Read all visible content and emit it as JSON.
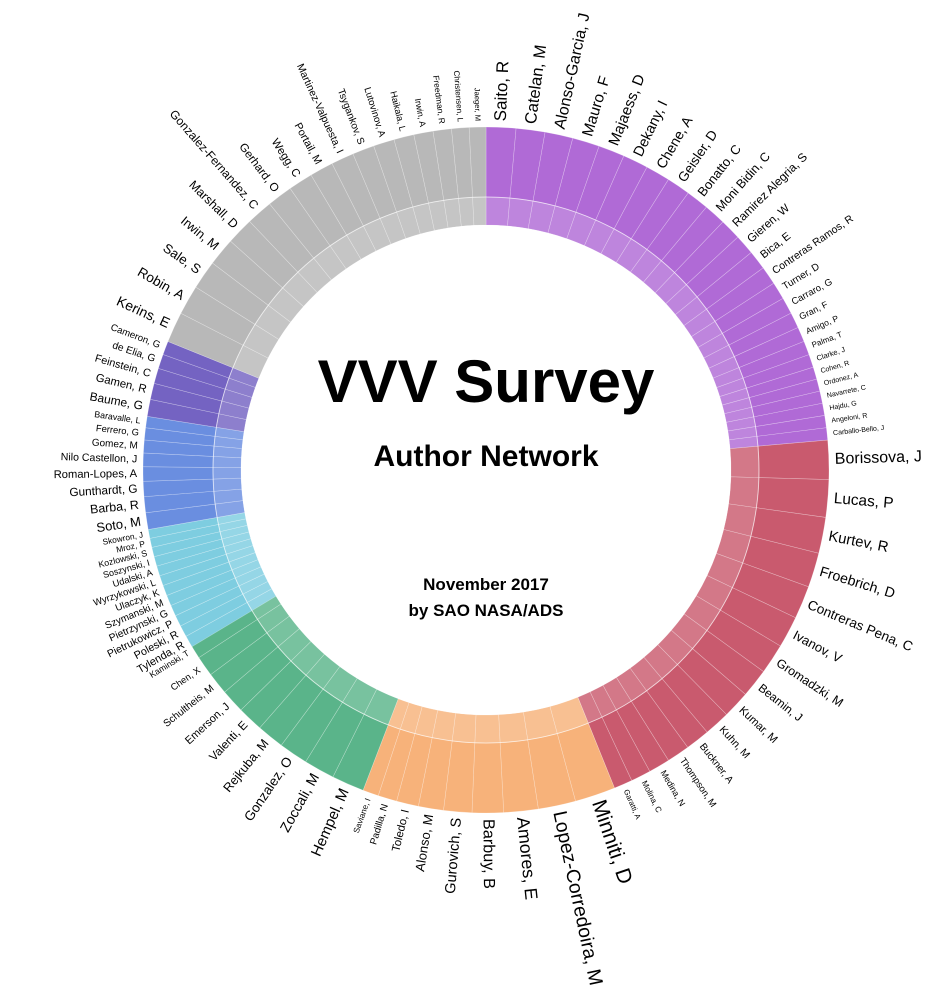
{
  "title": "VVV Survey",
  "subtitle": "Author Network",
  "date": "November 2017",
  "credit": "by SAO NASA/ADS",
  "groups": [
    {
      "color": "#b06ad6",
      "authors": [
        "Saito, R",
        "Catelan, M",
        "Alonso-Garcia, J",
        "Mauro, F",
        "Majaess, D",
        "Dekany, I",
        "Chene, A",
        "Geisler, D",
        "Bonatto, C",
        "Moni Bidin, C",
        "Ramirez Alegria, S",
        "Gieren, W",
        "Bica, E",
        "Contreras Ramos, R",
        "Turner, D",
        "Carraro, G",
        "Gran, F",
        "Amigo, P",
        "Palma, T",
        "Clarke, J",
        "Cohen, R",
        "Ordonez, A",
        "Navarrete, C",
        "Hajdu, G",
        "Angeloni, R",
        "Carballo-Bello, J"
      ]
    },
    {
      "color": "#c95a6e",
      "authors": [
        "Borissova, J",
        "Lucas, P",
        "Kurtev, R",
        "Froebrich, D",
        "Contreras Pena, C",
        "Ivanov, V",
        "Gromadzki, M",
        "Beamin, J",
        "Kumar, M",
        "Kuhn, M",
        "Buckner, A",
        "Thompson, M",
        "Medina, N",
        "Molina, C",
        "Garatti, A"
      ]
    },
    {
      "color": "#f7b27a",
      "authors": [
        "Minniti, D",
        "Lopez-Corredoira, M",
        "Amores, E",
        "Barbuy, B",
        "Gurovich, S",
        "Alonso, M",
        "Toledo, I",
        "Padilla, N",
        "Saviane, I"
      ]
    },
    {
      "color": "#5ab48a",
      "authors": [
        "Hempel, M",
        "Zoccali, M",
        "Gonzalez, O",
        "Rejkuba, M",
        "Valenti, E",
        "Emerson, J",
        "Schultheis, M",
        "Chen, X",
        "Kaminski, T"
      ]
    },
    {
      "color": "#7ecde0",
      "authors": [
        "Tylenda, R",
        "Poleski, R",
        "Pietrukowicz, P",
        "Pietrzynski, G",
        "Szymanski, M",
        "Ulaczyk, K",
        "Wyrzykowski, L",
        "Udalski, A",
        "Soszynski, I",
        "Kozlowski, S",
        "Mroz, P",
        "Skowron, J"
      ]
    },
    {
      "color": "#6a8ee0",
      "authors": [
        "Soto, M",
        "Barba, R",
        "Gunthardt, G",
        "Roman-Lopes, A",
        "Nilo Castellon, J",
        "Gomez, M",
        "Ferrero, G",
        "Baravalle, L"
      ]
    },
    {
      "color": "#7463c2",
      "authors": [
        "Baume, G",
        "Gamen, R",
        "Feinstein, C",
        "de Elia, G",
        "Cameron, G"
      ]
    },
    {
      "color": "#b8b8b8",
      "authors": [
        "Kerins, E",
        "Robin, A",
        "Sale, S",
        "Irwin, M",
        "Marshall, D",
        "Gonzalez-Fernandez, C",
        "Gerhard, O",
        "Wegg, C",
        "Portail, M",
        "Martinez-Valpuesta, I",
        "Tsygankov, S",
        "Lutovinov, A",
        "Haikala, L",
        "Irwin, A",
        "Freedman, R",
        "Christensen, L",
        "Jaeger, M"
      ]
    }
  ]
}
